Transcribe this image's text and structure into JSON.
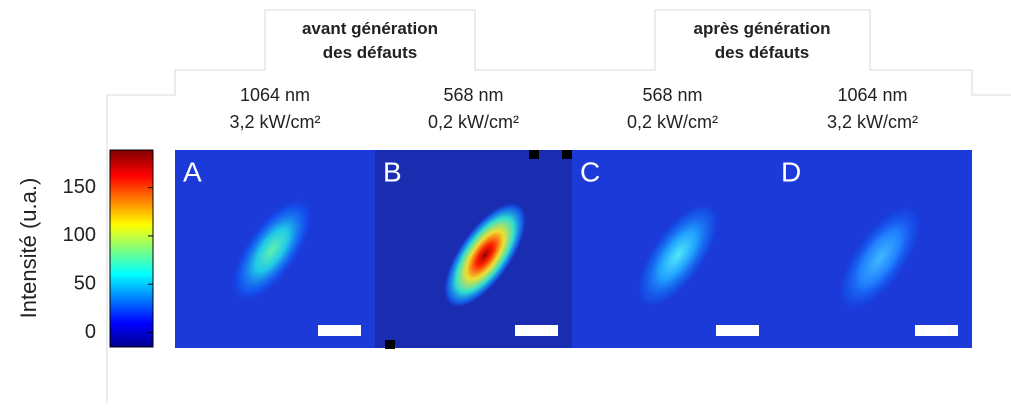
{
  "groups": [
    {
      "title": "avant génération\ndes défauts"
    },
    {
      "title": "après génération\ndes défauts"
    }
  ],
  "panels": [
    {
      "letter": "A",
      "wavelength": "1064 nm",
      "power": "3,2 kW/cm²"
    },
    {
      "letter": "B",
      "wavelength": "568 nm",
      "power": "0,2 kW/cm²"
    },
    {
      "letter": "C",
      "wavelength": "568 nm",
      "power": "0,2 kW/cm²"
    },
    {
      "letter": "D",
      "wavelength": "1064 nm",
      "power": "3,2 kW/cm²"
    }
  ],
  "colorbar": {
    "label": "Intensité (u.a.)",
    "ylim": [
      -15,
      189
    ],
    "yticks": [
      0,
      50,
      100,
      150
    ]
  }
}
